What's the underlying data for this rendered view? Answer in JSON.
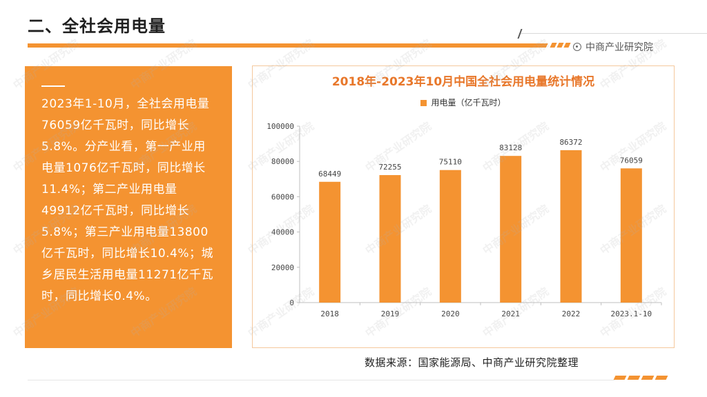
{
  "page": {
    "title": "二、全社会用电量",
    "brand": "中商产业研究院",
    "source": "数据来源：国家能源局、中商产业研究院整理",
    "watermark": "中商产业研究院"
  },
  "summary": {
    "dash": "——",
    "text": "2023年1-10月，全社会用电量76059亿千瓦时，同比增长5.8%。分产业看，第一产业用电量1076亿千瓦时，同比增长11.4%；第二产业用电量49912亿千瓦时，同比增长5.8%；第三产业用电量13800亿千瓦时，同比增长10.4%；城乡居民生活用电量11271亿千瓦时，同比增长0.4%。"
  },
  "colors": {
    "accent": "#f49331",
    "title_orange": "#e8772a"
  },
  "chart_data": {
    "type": "bar",
    "title": "2018年-2023年10月中国全社会用电量统计情况",
    "legend": "用电量（亿千瓦时）",
    "categories": [
      "2018",
      "2019",
      "2020",
      "2021",
      "2022",
      "2023.1-10"
    ],
    "values": [
      68449,
      72255,
      75110,
      83128,
      86372,
      76059
    ],
    "value_labels": [
      "68449",
      "72255",
      "75110",
      "83128",
      "86372",
      "76059"
    ],
    "ylim": [
      0,
      100000
    ],
    "yticks": [
      "0",
      "20000",
      "40000",
      "60000",
      "80000",
      "100000"
    ],
    "xlabel": "",
    "ylabel": "",
    "grid": false
  }
}
